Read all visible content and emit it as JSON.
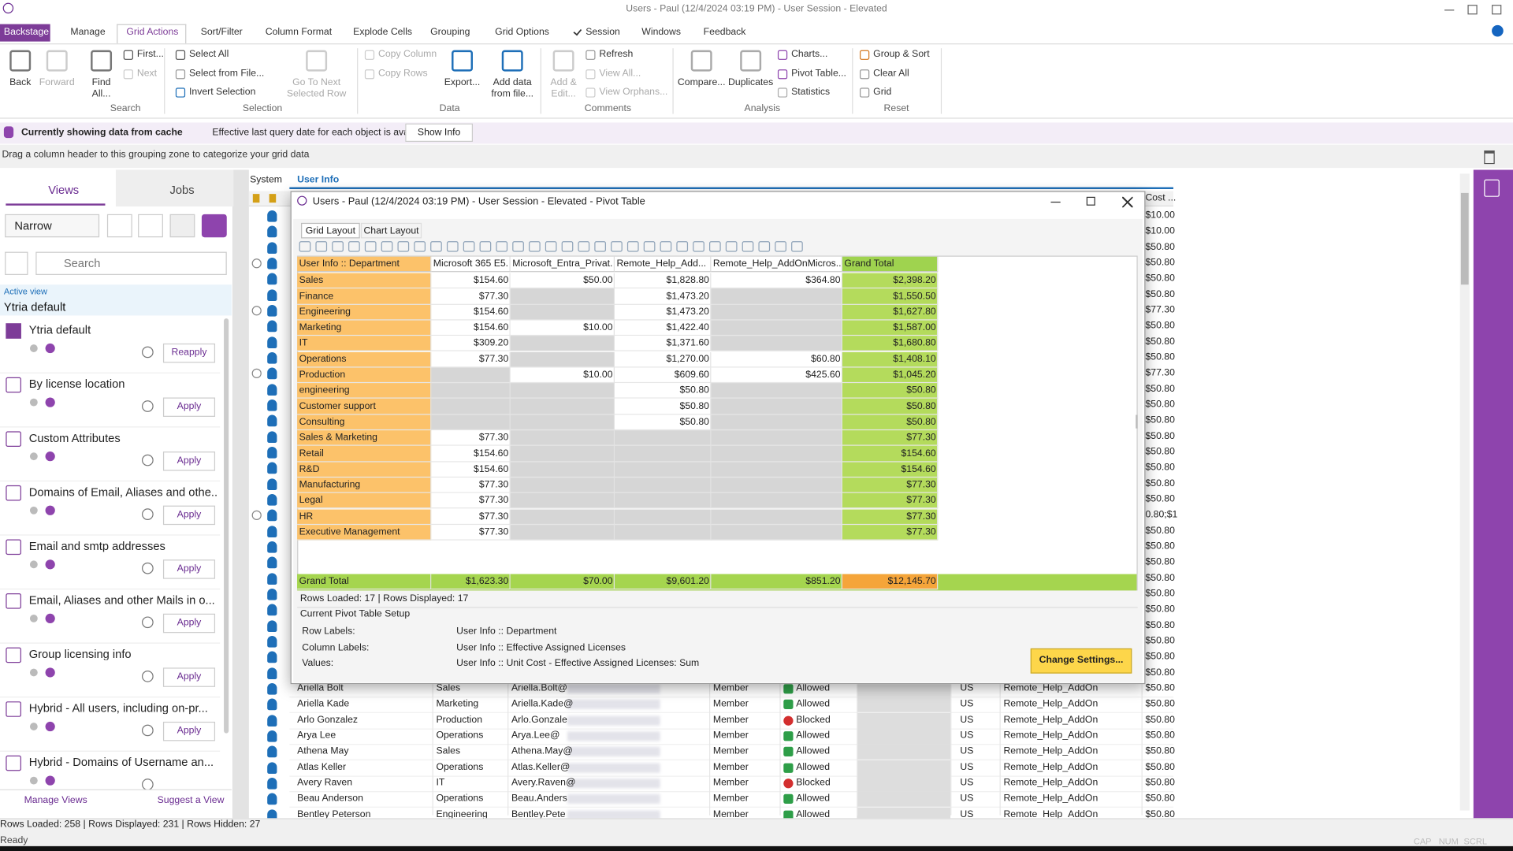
{
  "title_bar": {
    "title": "Users - Paul (12/4/2024 03:19 PM) - User Session - Elevated"
  },
  "ribbon": {
    "tabs": [
      "Backstage",
      "Manage",
      "Grid Actions",
      "Sort/Filter",
      "Column Format",
      "Explode Cells",
      "Grouping",
      "Grid Options",
      "Session",
      "Windows",
      "Feedback"
    ],
    "groups": [
      {
        "label": "Search",
        "items": [
          "Back",
          "Forward",
          "Find All...",
          "First...",
          "Next"
        ]
      },
      {
        "label": "Selection",
        "items": [
          "Select All",
          "Select from File...",
          "Invert Selection",
          "Go To Next Selected Row"
        ]
      },
      {
        "label": "Data",
        "items": [
          "Copy Column",
          "Copy Rows",
          "Export...",
          "Add data from file..."
        ]
      },
      {
        "label": "Comments",
        "items": [
          "Add & Edit...",
          "Refresh",
          "View All...",
          "View Orphans..."
        ]
      },
      {
        "label": "Analysis",
        "items": [
          "Compare...",
          "Duplicates",
          "Charts...",
          "Pivot Table...",
          "Statistics"
        ]
      },
      {
        "label": "Reset",
        "items": [
          "Group & Sort",
          "Clear All",
          "Grid"
        ]
      }
    ]
  },
  "info_bar": {
    "title": "Currently showing data from cache",
    "message": "Effective last query date for each object is available.",
    "button": "Show Info"
  },
  "group_zone": {
    "hint": "Drag a column header to this grouping zone to categorize your grid data"
  },
  "views_panel": {
    "tabs": [
      "Views",
      "Jobs"
    ],
    "mode": "Narrow",
    "search_placeholder": "Search",
    "active_view_label": "Active view",
    "active_view": "Ytria default",
    "views": [
      {
        "name": "Ytria default",
        "button": "Reapply"
      },
      {
        "name": "By license location",
        "button": "Apply"
      },
      {
        "name": "Custom Attributes",
        "button": "Apply"
      },
      {
        "name": "Domains of Email, Aliases and othe...",
        "button": "Apply"
      },
      {
        "name": "Email and smtp addresses",
        "button": "Apply"
      },
      {
        "name": "Email, Aliases and other Mails in o...",
        "button": "Apply"
      },
      {
        "name": "Group licensing info",
        "button": "Apply"
      },
      {
        "name": "Hybrid - All users, including on-pr...",
        "button": "Apply"
      },
      {
        "name": "Hybrid - Domains of Username an..."
      }
    ],
    "footer": [
      "Manage Views",
      "Suggest a View"
    ]
  },
  "grid": {
    "tabs": [
      "System",
      "User Info"
    ],
    "cost_header": "Cost ...",
    "cost_column": [
      "$10.00",
      "$10.00",
      "$50.80",
      "$50.80",
      "$50.80",
      "$50.80",
      "$77.30",
      "$50.80",
      "$50.80",
      "$50.80",
      "$77.30",
      "$50.80",
      "$50.80",
      "$50.80",
      "$50.80",
      "$50.80",
      "$50.80",
      "$50.80",
      "$50.80",
      "0.80;$1",
      "$50.80",
      "$50.80",
      "$50.80",
      "$50.80",
      "$50.80",
      "$50.80",
      "$50.80",
      "$50.80",
      "$50.80",
      "$50.80"
    ],
    "rows": [
      [
        "Ariella Bolt",
        "Sales",
        "Ariella.Bolt@",
        "Member",
        "Allowed",
        "US",
        "Remote_Help_AddOn",
        "$50.80"
      ],
      [
        "Ariella Kade",
        "Marketing",
        "Ariella.Kade@",
        "Member",
        "Allowed",
        "US",
        "Remote_Help_AddOn",
        "$50.80"
      ],
      [
        "Arlo Gonzalez",
        "Production",
        "Arlo.Gonzale",
        "Member",
        "Blocked",
        "US",
        "Remote_Help_AddOn",
        "$50.80"
      ],
      [
        "Arya Lee",
        "Operations",
        "Arya.Lee@",
        "Member",
        "Allowed",
        "US",
        "Remote_Help_AddOn",
        "$50.80"
      ],
      [
        "Athena May",
        "Sales",
        "Athena.May@",
        "Member",
        "Allowed",
        "US",
        "Remote_Help_AddOn",
        "$50.80"
      ],
      [
        "Atlas Keller",
        "Operations",
        "Atlas.Keller@",
        "Member",
        "Allowed",
        "US",
        "Remote_Help_AddOn",
        "$50.80"
      ],
      [
        "Avery Raven",
        "IT",
        "Avery.Raven@",
        "Member",
        "Blocked",
        "US",
        "Remote_Help_AddOn",
        "$50.80"
      ],
      [
        "Beau Anderson",
        "Operations",
        "Beau.Anders",
        "Member",
        "Allowed",
        "US",
        "Remote_Help_AddOn",
        "$50.80"
      ],
      [
        "Bentley Peterson",
        "Engineering",
        "Bentley.Pete",
        "Member",
        "Allowed",
        "US",
        "Remote_Help_AddOn",
        "$50.80"
      ]
    ]
  },
  "pivot_window": {
    "title": "Users - Paul (12/4/2024 03:19 PM) - User Session - Elevated - Pivot Table",
    "tabs": [
      "Grid Layout",
      "Chart Layout"
    ],
    "columns": [
      "User Info :: Department",
      "Microsoft 365 E5...",
      "Microsoft_Entra_Privat...",
      "Remote_Help_Add...",
      "Remote_Help_AddOnMicros...",
      "Grand Total"
    ],
    "rows": [
      [
        "Sales",
        "$154.60",
        "$50.00",
        "$1,828.80",
        "$364.80",
        "$2,398.20"
      ],
      [
        "Finance",
        "$77.30",
        null,
        "$1,473.20",
        null,
        "$1,550.50"
      ],
      [
        "Engineering",
        "$154.60",
        null,
        "$1,473.20",
        null,
        "$1,627.80"
      ],
      [
        "Marketing",
        "$154.60",
        "$10.00",
        "$1,422.40",
        null,
        "$1,587.00"
      ],
      [
        "IT",
        "$309.20",
        null,
        "$1,371.60",
        null,
        "$1,680.80"
      ],
      [
        "Operations",
        "$77.30",
        null,
        "$1,270.00",
        "$60.80",
        "$1,408.10"
      ],
      [
        "Production",
        null,
        "$10.00",
        "$609.60",
        "$425.60",
        "$1,045.20"
      ],
      [
        "engineering",
        null,
        null,
        "$50.80",
        null,
        "$50.80"
      ],
      [
        "Customer support",
        null,
        null,
        "$50.80",
        null,
        "$50.80"
      ],
      [
        "Consulting",
        null,
        null,
        "$50.80",
        null,
        "$50.80"
      ],
      [
        "Sales & Marketing",
        "$77.30",
        null,
        null,
        null,
        "$77.30"
      ],
      [
        "Retail",
        "$154.60",
        null,
        null,
        null,
        "$154.60"
      ],
      [
        "R&D",
        "$154.60",
        null,
        null,
        null,
        "$154.60"
      ],
      [
        "Manufacturing",
        "$77.30",
        null,
        null,
        null,
        "$77.30"
      ],
      [
        "Legal",
        "$77.30",
        null,
        null,
        null,
        "$77.30"
      ],
      [
        "HR",
        "$77.30",
        null,
        null,
        null,
        "$77.30"
      ],
      [
        "Executive Management",
        "$77.30",
        null,
        null,
        null,
        "$77.30"
      ]
    ],
    "grand_total": [
      "Grand Total",
      "$1,623.30",
      "$70.00",
      "$9,601.20",
      "$851.20",
      "$12,145.70"
    ],
    "summary": "Rows Loaded: 17 | Rows Displayed: 17",
    "setup": {
      "heading": "Current Pivot Table Setup",
      "items": [
        {
          "label": "Row Labels:",
          "value": "User Info :: Department"
        },
        {
          "label": "Column Labels:",
          "value": "User Info :: Effective Assigned Licenses"
        },
        {
          "label": "Values:",
          "value": "User Info :: Unit Cost - Effective Assigned Licenses: Sum"
        }
      ],
      "button": "Change Settings..."
    }
  },
  "status_bar": {
    "counts": "Rows Loaded: 258 | Rows Displayed: 231 | Rows Hidden: 27",
    "state": "Ready",
    "indicators": [
      "CAP",
      "NUM",
      "SCRL"
    ]
  }
}
